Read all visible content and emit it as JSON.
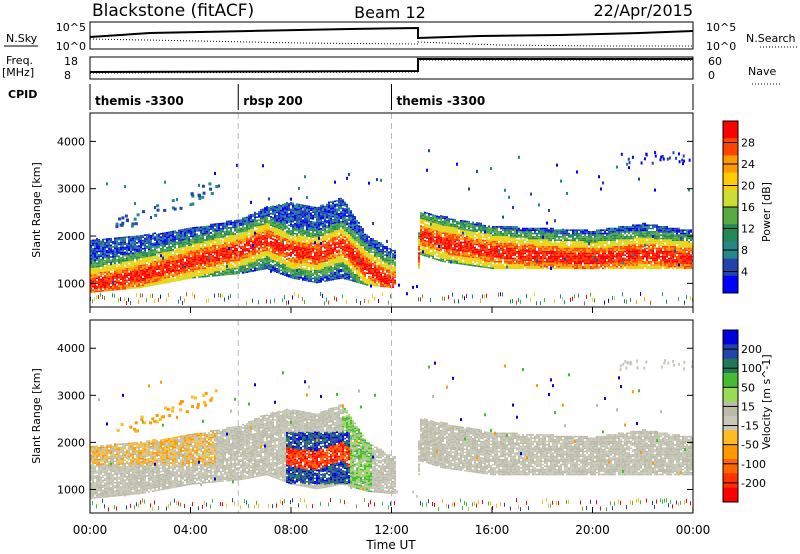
{
  "header": {
    "station": "Blackstone (fitACF)",
    "beam": "Beam 12",
    "date": "22/Apr/2015"
  },
  "top_panels": {
    "nsky_label": "N.Sky",
    "nsearch_label": "N.Search",
    "nsky_ticks": [
      "10^5",
      "10^0"
    ],
    "nsearch_ticks": [
      "10^5",
      "10^0"
    ],
    "freq_label": "Freq.",
    "freq_unit": "[MHz]",
    "freq_ticks": [
      "18",
      "8"
    ],
    "nave_label": "Nave",
    "nave_ticks": [
      "60",
      "0"
    ],
    "cpid_label": "CPID",
    "cpid_segments": [
      {
        "label": "themis -3300",
        "start_h": 0.0,
        "end_h": 5.9
      },
      {
        "label": "rbsp 200",
        "start_h": 5.9,
        "end_h": 12.0
      },
      {
        "label": "themis -3300",
        "start_h": 12.0,
        "end_h": 24.0
      }
    ]
  },
  "chart_data": [
    {
      "type": "heatmap",
      "name": "power",
      "ylabel": "Slant Range [km]",
      "ylim": [
        500,
        4600
      ],
      "yticks": [
        1000,
        2000,
        3000,
        4000
      ],
      "xlim_hours": [
        0,
        24
      ],
      "colorbar_label": "Power [dB]",
      "colorbar_ticks": [
        "28",
        "24",
        "20",
        "16",
        "12",
        "8",
        "4"
      ],
      "colorbar_colors": [
        "#ff0000",
        "#ff4400",
        "#ff9900",
        "#ffcc00",
        "#ccdd33",
        "#55aa44",
        "#228855",
        "#228888",
        "#2244aa",
        "#0000ff"
      ],
      "band": [
        {
          "h": 0.0,
          "core": 950,
          "lower": 800,
          "upper": 1900
        },
        {
          "h": 2.0,
          "core": 1150,
          "lower": 900,
          "upper": 2000
        },
        {
          "h": 4.0,
          "core": 1450,
          "lower": 1100,
          "upper": 2150
        },
        {
          "h": 6.0,
          "core": 1700,
          "lower": 1200,
          "upper": 2350
        },
        {
          "h": 7.0,
          "core": 1900,
          "lower": 1300,
          "upper": 2600
        },
        {
          "h": 8.0,
          "core": 1650,
          "lower": 1100,
          "upper": 2700
        },
        {
          "h": 9.0,
          "core": 1600,
          "lower": 1000,
          "upper": 2600
        },
        {
          "h": 10.0,
          "core": 1800,
          "lower": 1100,
          "upper": 2800
        },
        {
          "h": 11.0,
          "core": 1300,
          "lower": 950,
          "upper": 2000
        },
        {
          "h": 12.0,
          "core": 1000,
          "lower": 900,
          "upper": 1700
        },
        {
          "h": 13.0,
          "core": 1050,
          "lower": 950,
          "upper": 1500
        },
        {
          "h": 13.1,
          "core": 2000,
          "lower": 1600,
          "upper": 2500
        },
        {
          "h": 14.0,
          "core": 1850,
          "lower": 1450,
          "upper": 2400
        },
        {
          "h": 16.0,
          "core": 1650,
          "lower": 1300,
          "upper": 2200
        },
        {
          "h": 18.0,
          "core": 1550,
          "lower": 1300,
          "upper": 2150
        },
        {
          "h": 20.0,
          "core": 1500,
          "lower": 1300,
          "upper": 2100
        },
        {
          "h": 22.0,
          "core": 1600,
          "lower": 1300,
          "upper": 2250
        },
        {
          "h": 24.0,
          "core": 1500,
          "lower": 1300,
          "upper": 2100
        }
      ]
    },
    {
      "type": "heatmap",
      "name": "velocity",
      "ylabel": "Slant Range [km]",
      "xlabel": "Time UT",
      "ylim": [
        500,
        4600
      ],
      "yticks": [
        1000,
        2000,
        3000,
        4000
      ],
      "xlim_hours": [
        0,
        24
      ],
      "xticks": [
        "00:00",
        "04:00",
        "08:00",
        "12:00",
        "16:00",
        "20:00",
        "00:00"
      ],
      "colorbar_label": "Velocity [m s^-1]",
      "colorbar_ticks": [
        "200",
        "100",
        "50",
        "15",
        "-15",
        "-50",
        "-100",
        "-200"
      ],
      "colorbar_colors": [
        "#0000dd",
        "#2244aa",
        "#227755",
        "#44bb33",
        "#99dd55",
        "#bbbbaa",
        "#c8c8b8",
        "#ffbb22",
        "#ff9900",
        "#ff6600",
        "#ff3300",
        "#ff0000"
      ]
    }
  ]
}
